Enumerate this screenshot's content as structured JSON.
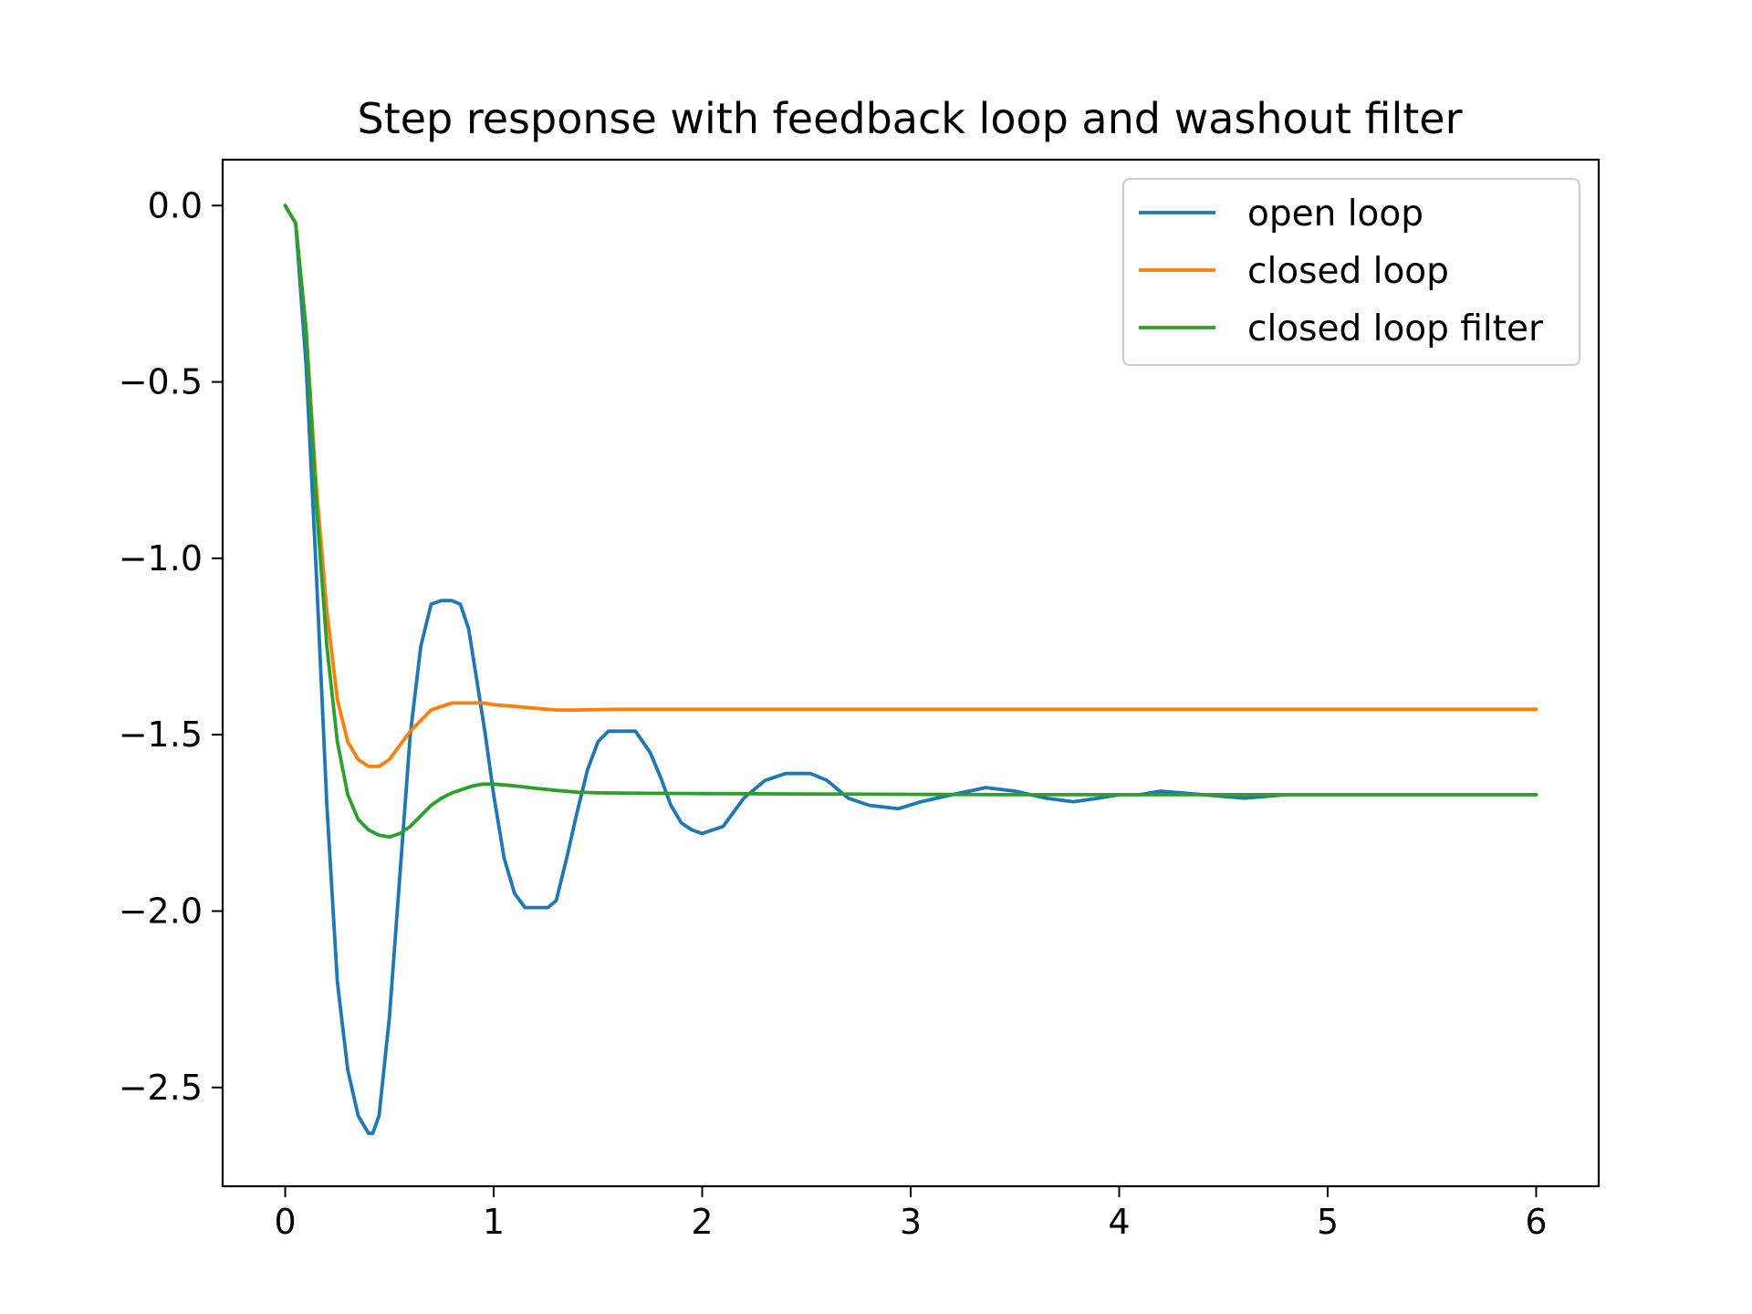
{
  "chart_data": {
    "type": "line",
    "title": "Step response with feedback loop and washout filter",
    "xlabel": "",
    "ylabel": "",
    "xlim": [
      -0.3,
      6.3
    ],
    "ylim": [
      -2.78,
      0.13
    ],
    "x_ticks": [
      0,
      1,
      2,
      3,
      4,
      5,
      6
    ],
    "x_tick_labels": [
      "0",
      "1",
      "2",
      "3",
      "4",
      "5",
      "6"
    ],
    "y_ticks": [
      0.0,
      -0.5,
      -1.0,
      -1.5,
      -2.0,
      -2.5
    ],
    "y_tick_labels": [
      "0.0",
      "−0.5",
      "−1.0",
      "−1.5",
      "−2.0",
      "−2.5"
    ],
    "grid": false,
    "legend_position": "top-right",
    "series": [
      {
        "name": "open loop",
        "color": "#1f77b4",
        "x": [
          0,
          0.05,
          0.1,
          0.15,
          0.2,
          0.25,
          0.3,
          0.35,
          0.4,
          0.42,
          0.45,
          0.5,
          0.55,
          0.6,
          0.65,
          0.7,
          0.75,
          0.8,
          0.84,
          0.88,
          0.92,
          0.96,
          1.0,
          1.05,
          1.1,
          1.15,
          1.2,
          1.26,
          1.3,
          1.35,
          1.4,
          1.45,
          1.5,
          1.55,
          1.6,
          1.68,
          1.75,
          1.8,
          1.85,
          1.9,
          1.95,
          2.0,
          2.1,
          2.2,
          2.3,
          2.4,
          2.52,
          2.6,
          2.7,
          2.8,
          2.94,
          3.05,
          3.2,
          3.36,
          3.5,
          3.65,
          3.78,
          3.9,
          4.0,
          4.1,
          4.2,
          4.4,
          4.6,
          4.8,
          5.0,
          5.2,
          5.4,
          5.6,
          5.8,
          6.0
        ],
        "y": [
          0.0,
          -0.05,
          -0.45,
          -1.05,
          -1.7,
          -2.2,
          -2.45,
          -2.58,
          -2.63,
          -2.63,
          -2.58,
          -2.3,
          -1.9,
          -1.5,
          -1.25,
          -1.13,
          -1.12,
          -1.12,
          -1.13,
          -1.2,
          -1.35,
          -1.5,
          -1.67,
          -1.85,
          -1.95,
          -1.99,
          -1.99,
          -1.99,
          -1.97,
          -1.85,
          -1.72,
          -1.6,
          -1.52,
          -1.49,
          -1.49,
          -1.49,
          -1.55,
          -1.62,
          -1.7,
          -1.75,
          -1.77,
          -1.78,
          -1.76,
          -1.68,
          -1.63,
          -1.61,
          -1.61,
          -1.63,
          -1.68,
          -1.7,
          -1.71,
          -1.69,
          -1.67,
          -1.65,
          -1.66,
          -1.68,
          -1.69,
          -1.68,
          -1.67,
          -1.67,
          -1.66,
          -1.67,
          -1.68,
          -1.67,
          -1.67,
          -1.67,
          -1.67,
          -1.67,
          -1.67,
          -1.67
        ]
      },
      {
        "name": "closed loop",
        "color": "#ff7f0e",
        "x": [
          0,
          0.05,
          0.1,
          0.15,
          0.2,
          0.25,
          0.3,
          0.35,
          0.4,
          0.45,
          0.5,
          0.55,
          0.6,
          0.65,
          0.7,
          0.75,
          0.8,
          0.85,
          0.9,
          0.95,
          1.0,
          1.1,
          1.2,
          1.3,
          1.4,
          1.6,
          1.8,
          2.0,
          2.5,
          3.0,
          3.5,
          4.0,
          4.5,
          5.0,
          5.5,
          6.0
        ],
        "y": [
          0.0,
          -0.05,
          -0.35,
          -0.8,
          -1.15,
          -1.4,
          -1.52,
          -1.57,
          -1.59,
          -1.59,
          -1.57,
          -1.53,
          -1.49,
          -1.46,
          -1.43,
          -1.42,
          -1.41,
          -1.41,
          -1.41,
          -1.41,
          -1.415,
          -1.42,
          -1.425,
          -1.43,
          -1.43,
          -1.428,
          -1.428,
          -1.428,
          -1.428,
          -1.428,
          -1.428,
          -1.428,
          -1.428,
          -1.428,
          -1.428,
          -1.428
        ]
      },
      {
        "name": "closed loop filter",
        "color": "#2ca02c",
        "x": [
          0,
          0.05,
          0.1,
          0.15,
          0.2,
          0.25,
          0.3,
          0.35,
          0.4,
          0.45,
          0.5,
          0.55,
          0.6,
          0.65,
          0.7,
          0.75,
          0.8,
          0.85,
          0.9,
          0.95,
          1.0,
          1.1,
          1.2,
          1.3,
          1.4,
          1.5,
          1.7,
          2.0,
          2.5,
          3.0,
          3.5,
          4.0,
          4.5,
          5.0,
          5.5,
          6.0
        ],
        "y": [
          0.0,
          -0.05,
          -0.35,
          -0.85,
          -1.25,
          -1.52,
          -1.67,
          -1.74,
          -1.77,
          -1.785,
          -1.79,
          -1.78,
          -1.76,
          -1.73,
          -1.7,
          -1.68,
          -1.665,
          -1.655,
          -1.645,
          -1.64,
          -1.64,
          -1.645,
          -1.652,
          -1.658,
          -1.663,
          -1.665,
          -1.666,
          -1.667,
          -1.668,
          -1.669,
          -1.67,
          -1.67,
          -1.67,
          -1.67,
          -1.67,
          -1.67
        ]
      }
    ]
  }
}
